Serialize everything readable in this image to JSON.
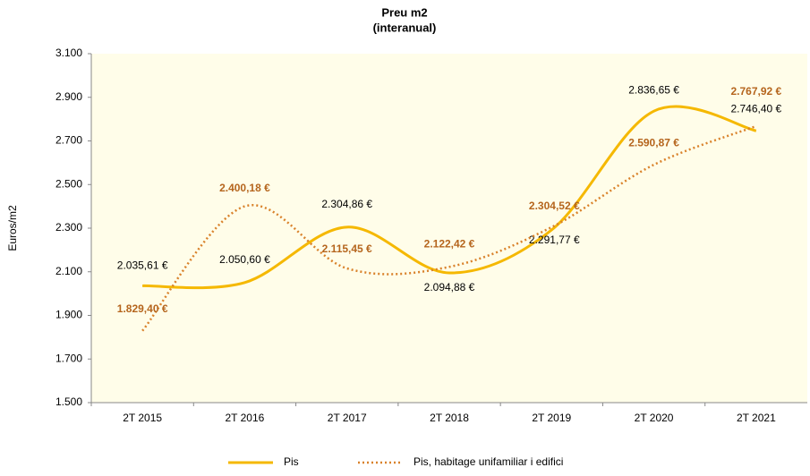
{
  "chart_data": {
    "type": "line",
    "title": "Preu m2",
    "subtitle": "(interanual)",
    "y_label": "Euros/m2",
    "categories": [
      "2T 2015",
      "2T 2016",
      "2T 2017",
      "2T 2018",
      "2T 2019",
      "2T 2020",
      "2T 2021"
    ],
    "series": [
      {
        "name": "Pis",
        "color": "#f5b800",
        "style": "solid",
        "values": [
          2035.61,
          2050.6,
          2304.86,
          2094.88,
          2291.77,
          2836.65,
          2746.4
        ],
        "value_labels": [
          "2.035,61 €",
          "2.050,60 €",
          "2.304,86 €",
          "2.094,88 €",
          "2.291,77 €",
          "2.836,65 €",
          "2.746,40 €"
        ]
      },
      {
        "name": "Pis, habitage unifamiliar i edifici",
        "color": "#d9822b",
        "style": "dotted",
        "values": [
          1829.4,
          2400.18,
          2115.45,
          2122.42,
          2304.52,
          2590.87,
          2767.92
        ],
        "value_labels": [
          "1.829,40 €",
          "2.400,18 €",
          "2.115,45 €",
          "2.122,42 €",
          "2.304,52 €",
          "2.590,87 €",
          "2.767,92 €"
        ]
      }
    ],
    "ylim": [
      1500,
      3100
    ],
    "yticks": [
      {
        "value": 1500,
        "label": "1.500"
      },
      {
        "value": 1700,
        "label": "1.700"
      },
      {
        "value": 1900,
        "label": "1.900"
      },
      {
        "value": 2100,
        "label": "2.100"
      },
      {
        "value": 2300,
        "label": "2.300"
      },
      {
        "value": 2500,
        "label": "2.500"
      },
      {
        "value": 2700,
        "label": "2.700"
      },
      {
        "value": 2900,
        "label": "2.900"
      },
      {
        "value": 3100,
        "label": "3.100"
      }
    ],
    "grid": false,
    "legend": "bottom"
  }
}
